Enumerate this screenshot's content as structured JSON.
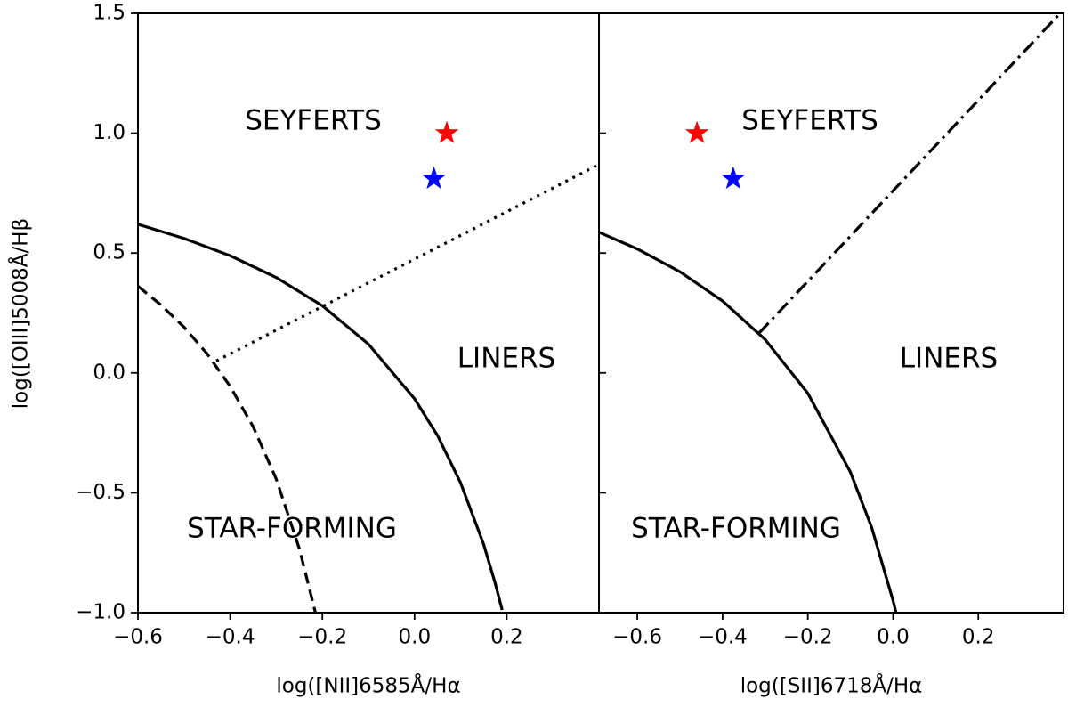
{
  "chart_data": [
    {
      "type": "scatter",
      "xlabel": "log([NII]6585Å/Hα",
      "ylabel": "log([OIII]5008Å/Hβ",
      "xlim": [
        -0.6,
        0.4
      ],
      "ylim": [
        -1.0,
        1.5
      ],
      "xticks": [
        {
          "value": -0.6,
          "label": "−0.6"
        },
        {
          "value": -0.4,
          "label": "−0.4"
        },
        {
          "value": -0.2,
          "label": "−0.2"
        },
        {
          "value": 0,
          "label": "0.0"
        },
        0.2
      ],
      "yticks": [
        {
          "value": -1.0,
          "label": "−1.0"
        },
        {
          "value": -0.5,
          "label": "−0.5"
        },
        {
          "value": 0,
          "label": "0.0"
        },
        0.5,
        {
          "value": 1.0,
          "label": "1.0"
        },
        1.5
      ],
      "annotations": [
        "SEYFERTS",
        "LINERS",
        "STAR-FORMING"
      ],
      "curves": [
        {
          "color": "#000000",
          "dash": "solid",
          "x": [
            -0.6,
            -0.5,
            -0.4,
            -0.3,
            -0.2,
            -0.1,
            0.0,
            0.05,
            0.1,
            0.15,
            0.175,
            0.19
          ],
          "values": [
            0.62,
            0.561,
            0.489,
            0.398,
            0.28,
            0.12,
            -0.108,
            -0.262,
            -0.459,
            -0.716,
            -0.878,
            -0.989
          ]
        },
        {
          "color": "#000000",
          "dash": "dashed",
          "x": [
            -0.6,
            -0.55,
            -0.5,
            -0.45,
            -0.4,
            -0.35,
            -0.3,
            -0.25,
            -0.215
          ],
          "values": [
            0.362,
            0.283,
            0.191,
            0.08,
            -0.056,
            -0.225,
            -0.443,
            -0.733,
            -1.0
          ]
        },
        {
          "color": "#000000",
          "dash": "dotted",
          "x": [
            -0.43,
            0.4
          ],
          "values": [
            0.05,
            0.87
          ]
        }
      ],
      "points": [
        {
          "color": "#ff0000",
          "marker": "star",
          "x": 0.07,
          "y": 1.0
        },
        {
          "color": "#0000ff",
          "marker": "star",
          "x": 0.042,
          "y": 0.81
        }
      ]
    },
    {
      "type": "scatter",
      "xlabel": "log([SII]6718Å/Hα",
      "xlim": [
        -0.69,
        0.4
      ],
      "ylim": [
        -1.0,
        1.5
      ],
      "xticks": [
        {
          "value": -0.6,
          "label": "−0.6"
        },
        {
          "value": -0.4,
          "label": "−0.4"
        },
        {
          "value": -0.2,
          "label": "−0.2"
        },
        {
          "value": 0,
          "label": "0.0"
        },
        0.2
      ],
      "annotations": [
        "SEYFERTS",
        "LINERS",
        "STAR-FORMING"
      ],
      "curves": [
        {
          "color": "#000000",
          "dash": "solid",
          "x": [
            -0.69,
            -0.6,
            -0.5,
            -0.4,
            -0.3,
            -0.2,
            -0.1,
            -0.05,
            0.0,
            0.007
          ],
          "values": [
            0.587,
            0.517,
            0.422,
            0.3,
            0.139,
            -0.085,
            -0.414,
            -0.646,
            -0.95,
            -1.0
          ]
        },
        {
          "color": "#000000",
          "dash": "dashdot",
          "x": [
            -0.315,
            0.392
          ],
          "values": [
            0.165,
            1.5
          ]
        }
      ],
      "points": [
        {
          "color": "#ff0000",
          "marker": "star",
          "x": -0.46,
          "y": 1.0
        },
        {
          "color": "#0000ff",
          "marker": "star",
          "x": -0.375,
          "y": 0.81
        }
      ]
    }
  ]
}
